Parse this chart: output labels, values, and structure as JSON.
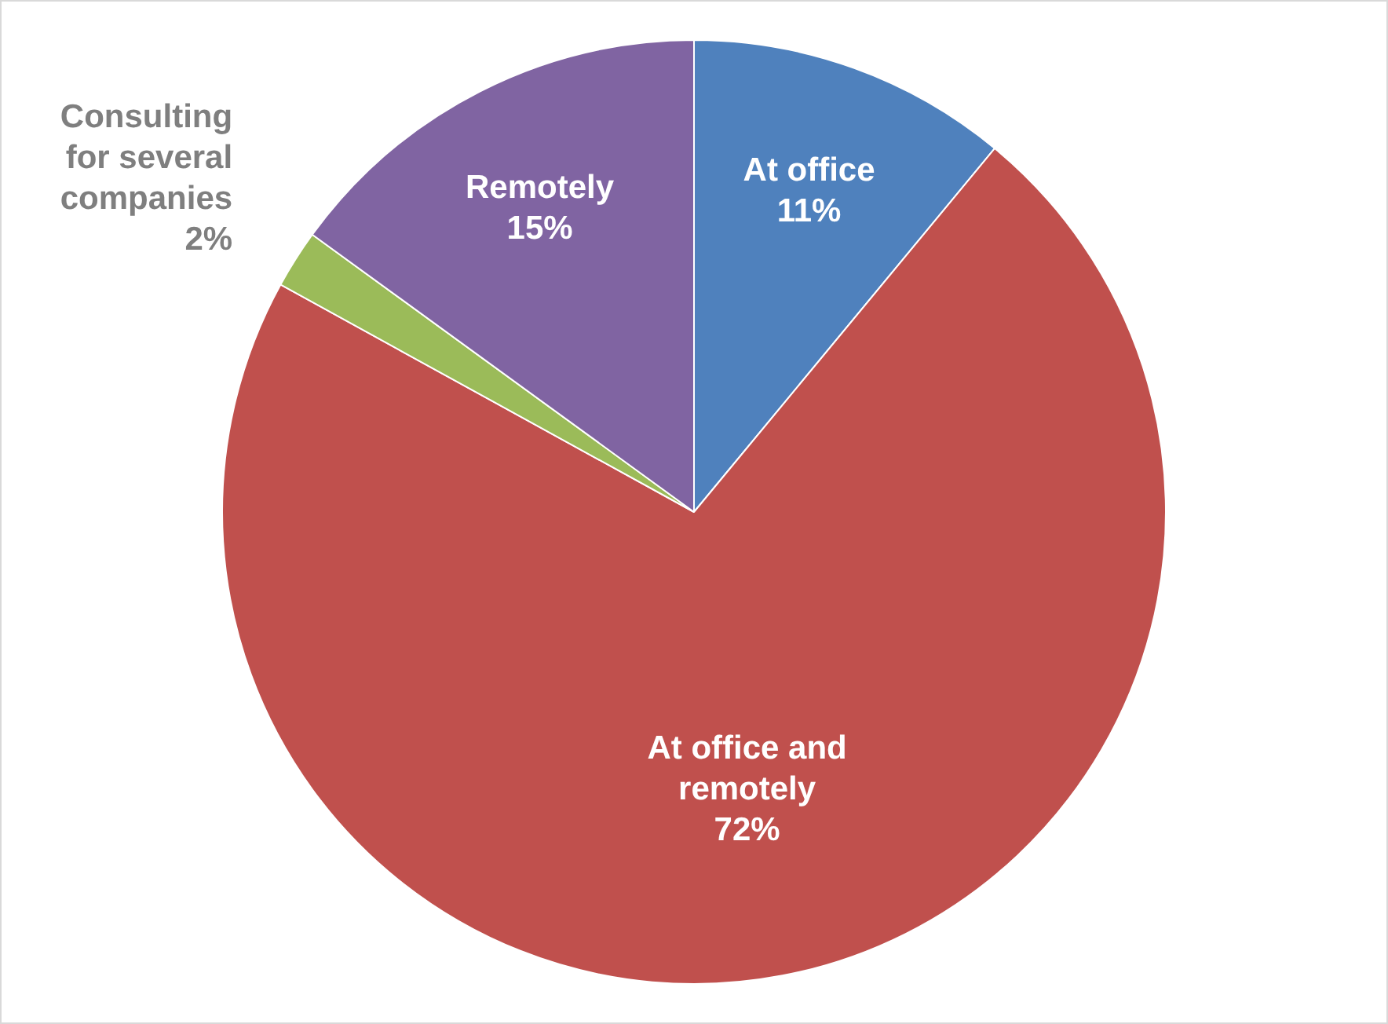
{
  "chart_data": {
    "type": "pie",
    "categories": [
      "At office",
      "At office and remotely",
      "Consulting for several companies",
      "Remotely"
    ],
    "values": [
      11,
      72,
      2,
      15
    ],
    "colors": [
      "#4f81bd",
      "#c0504d",
      "#9bbb59",
      "#8064a2"
    ],
    "value_labels": [
      "11%",
      "72%",
      "2%",
      "15%"
    ],
    "legend": false
  }
}
